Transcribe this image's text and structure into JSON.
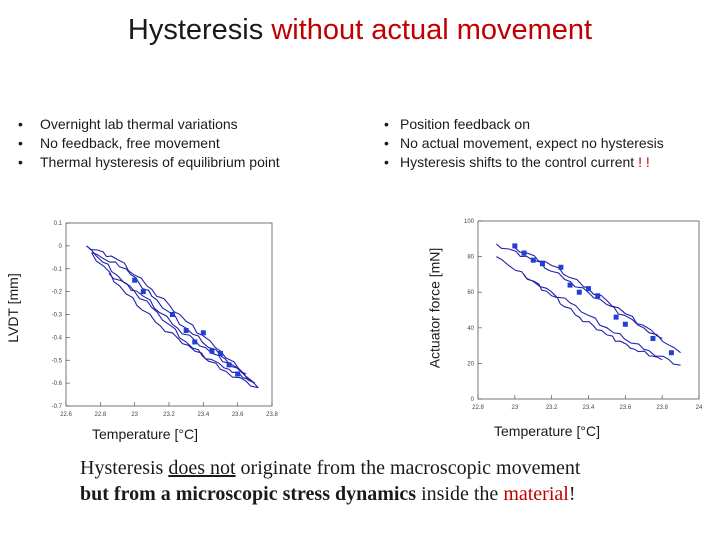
{
  "title": {
    "part1": "Hysteresis ",
    "part2": "without actual movement"
  },
  "left_bullets": [
    "Overnight lab thermal variations",
    "No feedback, free movement",
    "Thermal hysteresis of equilibrium point"
  ],
  "right_bullets": [
    "Position feedback on",
    "No actual movement, expect no hysteresis",
    {
      "text": "Hysteresis shifts to the control current",
      "emphasis": " ! !"
    }
  ],
  "conclusion": {
    "t1": "Hysteresis ",
    "t2": "does not",
    "t3": " originate from the macroscopic movement",
    "t4": "but from a microscopic stress dynamics",
    "t5": " inside the ",
    "t6": "material",
    "t7": "!"
  },
  "colors": {
    "accent": "#c00000",
    "series": "#2222aa",
    "marker": "#1f3fd6"
  },
  "chart_data": [
    {
      "type": "line",
      "xlabel": "Temperature [°C]",
      "ylabel": "LVDT [mm]",
      "xlim": [
        22.6,
        23.8
      ],
      "ylim": [
        -0.7,
        0.1
      ],
      "xticks": [
        "22.6",
        "22.8",
        "23",
        "23.2",
        "23.4",
        "23.6",
        "23.8"
      ],
      "yticks": [
        "0.1",
        "0",
        "-0.1",
        "-0.2",
        "-0.3",
        "-0.4",
        "-0.5",
        "-0.6",
        "-0.7"
      ],
      "grid": false,
      "series": [
        {
          "x": [
            22.72,
            22.9,
            23.1,
            23.3,
            23.5,
            23.72
          ],
          "y": [
            0.0,
            -0.06,
            -0.19,
            -0.33,
            -0.46,
            -0.62
          ]
        },
        {
          "x": [
            23.72,
            23.5,
            23.3,
            23.1,
            22.9,
            22.72
          ],
          "y": [
            -0.62,
            -0.54,
            -0.42,
            -0.27,
            -0.13,
            0.0
          ]
        },
        {
          "x": [
            22.75,
            22.95,
            23.15,
            23.35,
            23.55,
            23.7
          ],
          "y": [
            -0.03,
            -0.21,
            -0.35,
            -0.46,
            -0.54,
            -0.6
          ]
        },
        {
          "x": [
            23.7,
            23.5,
            23.3,
            23.1,
            22.95,
            22.75
          ],
          "y": [
            -0.6,
            -0.48,
            -0.36,
            -0.22,
            -0.1,
            -0.03
          ]
        },
        {
          "x": [
            22.85,
            23.05,
            23.25,
            23.45,
            23.65
          ],
          "y": [
            -0.12,
            -0.22,
            -0.36,
            -0.47,
            -0.56
          ]
        }
      ],
      "marker_points": {
        "x": [
          23.0,
          23.05,
          23.3,
          23.35,
          23.4,
          23.45,
          23.5,
          23.55,
          23.6,
          23.22
        ],
        "y": [
          -0.15,
          -0.2,
          -0.37,
          -0.42,
          -0.38,
          -0.46,
          -0.47,
          -0.52,
          -0.56,
          -0.3
        ]
      }
    },
    {
      "type": "line",
      "xlabel": "Temperature [°C]",
      "ylabel": "Actuator force [mN]",
      "xlim": [
        22.8,
        24.0
      ],
      "ylim": [
        0,
        100
      ],
      "xticks": [
        "22.8",
        "23",
        "23.2",
        "23.4",
        "23.6",
        "23.8",
        "24"
      ],
      "yticks": [
        "100",
        "80",
        "60",
        "40",
        "20",
        "0"
      ],
      "grid": false,
      "series": [
        {
          "x": [
            22.9,
            23.1,
            23.3,
            23.5,
            23.7,
            23.9
          ],
          "y": [
            87,
            78,
            66,
            53,
            40,
            26
          ]
        },
        {
          "x": [
            23.9,
            23.7,
            23.5,
            23.3,
            23.1,
            22.9
          ],
          "y": [
            19,
            28,
            40,
            54,
            66,
            80
          ]
        },
        {
          "x": [
            23.05,
            23.2,
            23.35,
            23.5,
            23.65,
            23.8
          ],
          "y": [
            70,
            58,
            46,
            36,
            28,
            22
          ]
        },
        {
          "x": [
            23.0,
            23.2,
            23.4,
            23.6,
            23.8
          ],
          "y": [
            85,
            75,
            62,
            48,
            34
          ]
        }
      ],
      "marker_points": {
        "x": [
          23.0,
          23.05,
          23.1,
          23.15,
          23.25,
          23.3,
          23.35,
          23.4,
          23.45,
          23.55,
          23.6,
          23.75,
          23.85
        ],
        "y": [
          86,
          82,
          78,
          76,
          74,
          64,
          60,
          62,
          58,
          46,
          42,
          34,
          26
        ]
      }
    }
  ]
}
